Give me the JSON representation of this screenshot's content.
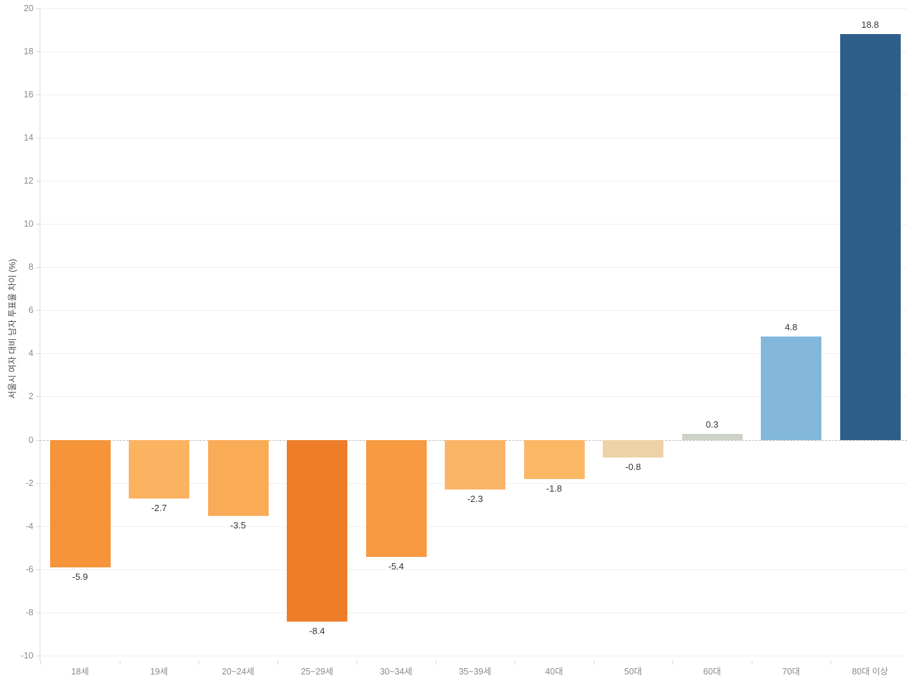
{
  "chart_data": {
    "type": "bar",
    "title": "",
    "xlabel": "",
    "ylabel": "서울시 여자 대비 남자 투표율 차이 (%)",
    "categories": [
      "18세",
      "19세",
      "20~24세",
      "25~29세",
      "30~34세",
      "35~39세",
      "40대",
      "50대",
      "60대",
      "70대",
      "80대 이상"
    ],
    "values": [
      -5.9,
      -2.7,
      -3.5,
      -8.4,
      -5.4,
      -2.3,
      -1.8,
      -0.8,
      0.3,
      4.8,
      18.8
    ],
    "value_labels": [
      "-5.9",
      "-2.7",
      "-3.5",
      "-8.4",
      "-5.4",
      "-2.3",
      "-1.8",
      "-0.8",
      "0.3",
      "4.8",
      "18.8"
    ],
    "bar_colors": [
      "#F6943A",
      "#FBB261",
      "#FAAB55",
      "#ED7D29",
      "#F79A42",
      "#FBB466",
      "#FCB765",
      "#EDD1A7",
      "#CDD3C9",
      "#83B8DC",
      "#2E5F8A"
    ],
    "ylim": [
      -10,
      20
    ],
    "yticks": [
      20,
      18,
      16,
      14,
      12,
      10,
      8,
      6,
      4,
      2,
      0,
      -2,
      -4,
      -6,
      -8,
      -10
    ],
    "grid": "horizontal",
    "legend": "none",
    "zero_line": "dashed"
  }
}
